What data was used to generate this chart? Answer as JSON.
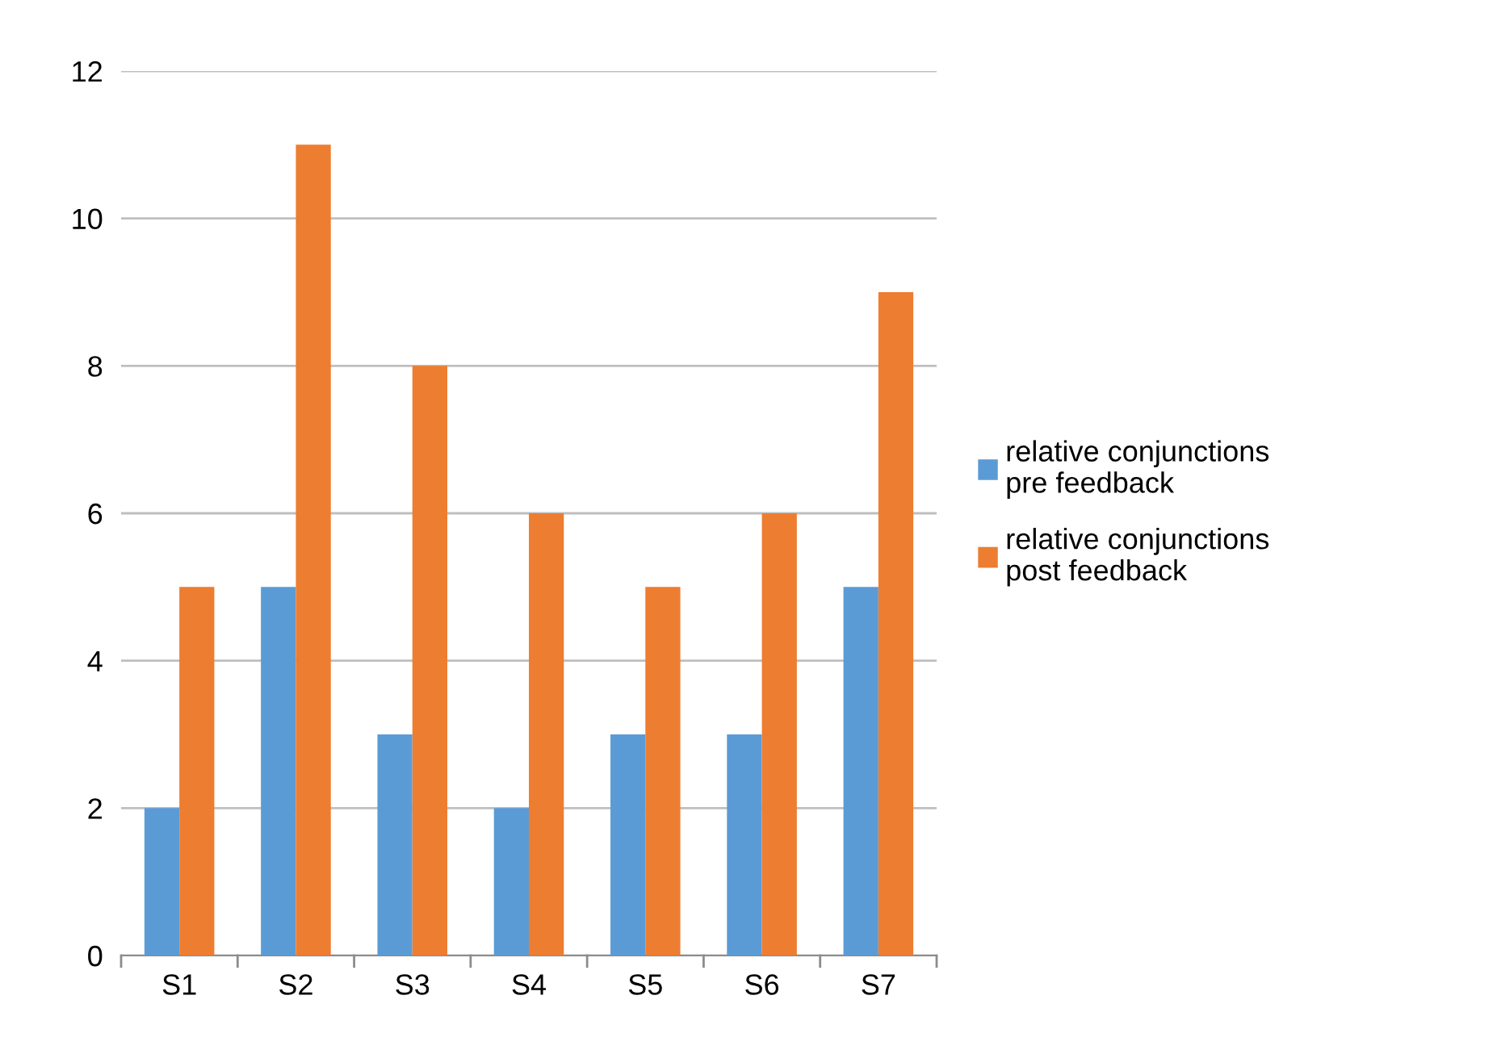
{
  "chart_data": {
    "type": "bar",
    "categories": [
      "S1",
      "S2",
      "S3",
      "S4",
      "S5",
      "S6",
      "S7"
    ],
    "series": [
      {
        "name": "relative conjunctions pre feedback",
        "color": "#5b9bd5",
        "values": [
          2,
          5,
          3,
          2,
          3,
          3,
          5
        ]
      },
      {
        "name": "relative conjunctions post feedback",
        "color": "#ed7d31",
        "values": [
          5,
          11,
          8,
          6,
          5,
          6,
          9
        ]
      }
    ],
    "ylim": [
      0,
      12
    ],
    "yticks": [
      0,
      2,
      4,
      6,
      8,
      10,
      12
    ],
    "grid": "y",
    "legend": "right"
  }
}
